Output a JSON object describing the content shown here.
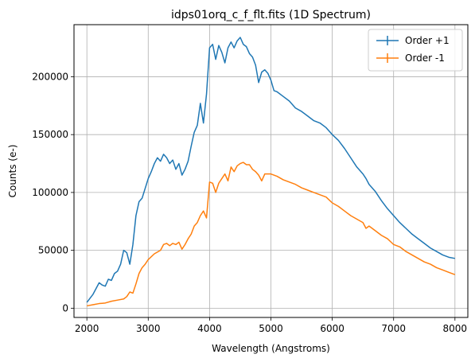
{
  "chart_data": {
    "type": "line",
    "title": "idps01orq_c_f_flt.fits (1D Spectrum)",
    "xlabel": "Wavelength (Angstroms)",
    "ylabel": "Counts (e-)",
    "xlim": [
      1790,
      8210
    ],
    "ylim": [
      -8000,
      245000
    ],
    "xticks": [
      2000,
      3000,
      4000,
      5000,
      6000,
      7000,
      8000
    ],
    "yticks": [
      0,
      50000,
      100000,
      150000,
      200000
    ],
    "grid": true,
    "legend_position": "top-right",
    "series": [
      {
        "name": "Order +1",
        "color": "#1f77b4",
        "x": [
          2000,
          2100,
          2200,
          2250,
          2300,
          2350,
          2400,
          2450,
          2500,
          2550,
          2600,
          2650,
          2700,
          2750,
          2800,
          2850,
          2900,
          3000,
          3050,
          3100,
          3150,
          3200,
          3250,
          3300,
          3350,
          3400,
          3450,
          3500,
          3550,
          3600,
          3650,
          3700,
          3750,
          3800,
          3850,
          3900,
          3950,
          4000,
          4050,
          4100,
          4150,
          4200,
          4250,
          4300,
          4350,
          4400,
          4450,
          4500,
          4550,
          4600,
          4650,
          4700,
          4750,
          4800,
          4850,
          4900,
          4950,
          5000,
          5050,
          5100,
          5200,
          5300,
          5400,
          5500,
          5600,
          5700,
          5800,
          5900,
          6000,
          6100,
          6200,
          6300,
          6400,
          6500,
          6550,
          6600,
          6700,
          6800,
          6900,
          7000,
          7100,
          7200,
          7300,
          7400,
          7500,
          7600,
          7700,
          7800,
          7900,
          8000
        ],
        "values": [
          5000,
          12000,
          22000,
          20000,
          19000,
          25000,
          24000,
          30000,
          32000,
          38000,
          50000,
          48000,
          38000,
          55000,
          80000,
          92000,
          95000,
          112000,
          118000,
          125000,
          130000,
          127000,
          133000,
          130000,
          125000,
          128000,
          120000,
          125000,
          115000,
          120000,
          127000,
          140000,
          152000,
          158000,
          177000,
          160000,
          185000,
          225000,
          228000,
          215000,
          227000,
          221000,
          212000,
          225000,
          230000,
          225000,
          231000,
          234000,
          228000,
          226000,
          220000,
          217000,
          210000,
          195000,
          204000,
          206000,
          203000,
          197000,
          188000,
          187000,
          183000,
          179000,
          173000,
          170000,
          166000,
          162000,
          160000,
          156000,
          150000,
          145000,
          138000,
          130000,
          122000,
          116000,
          112000,
          107000,
          101000,
          93000,
          86000,
          80000,
          74000,
          69000,
          64000,
          60000,
          56000,
          52000,
          49000,
          46000,
          44000,
          43000
        ]
      },
      {
        "name": "Order -1",
        "color": "#ff7f0e",
        "x": [
          2000,
          2100,
          2200,
          2300,
          2400,
          2500,
          2600,
          2650,
          2700,
          2750,
          2800,
          2850,
          2900,
          2950,
          3000,
          3100,
          3200,
          3250,
          3300,
          3350,
          3400,
          3450,
          3500,
          3550,
          3600,
          3650,
          3700,
          3750,
          3800,
          3850,
          3900,
          3950,
          4000,
          4050,
          4100,
          4150,
          4200,
          4250,
          4300,
          4350,
          4400,
          4450,
          4500,
          4550,
          4600,
          4650,
          4700,
          4750,
          4800,
          4850,
          4900,
          5000,
          5100,
          5200,
          5300,
          5400,
          5500,
          5600,
          5700,
          5800,
          5900,
          6000,
          6100,
          6200,
          6300,
          6400,
          6500,
          6550,
          6600,
          6700,
          6800,
          6900,
          7000,
          7100,
          7200,
          7300,
          7400,
          7500,
          7600,
          7700,
          7800,
          7900,
          8000
        ],
        "values": [
          2000,
          3000,
          4000,
          4500,
          6000,
          7000,
          8000,
          10000,
          14000,
          13000,
          21000,
          30000,
          35000,
          38000,
          42000,
          47000,
          50000,
          55000,
          56000,
          54000,
          56000,
          55000,
          57000,
          51000,
          55000,
          60000,
          64000,
          71000,
          74000,
          80000,
          84000,
          78000,
          109000,
          108000,
          100000,
          108000,
          112000,
          116000,
          110000,
          122000,
          118000,
          123000,
          125000,
          126000,
          124000,
          124000,
          120000,
          118000,
          115000,
          110000,
          116000,
          116000,
          114000,
          111000,
          109000,
          107000,
          104000,
          102000,
          100000,
          98000,
          96000,
          91000,
          88000,
          84000,
          80000,
          77000,
          74000,
          69000,
          71000,
          67000,
          63000,
          60000,
          55000,
          53000,
          49000,
          46000,
          43000,
          40000,
          38000,
          35000,
          33000,
          31000,
          29000
        ]
      }
    ]
  }
}
